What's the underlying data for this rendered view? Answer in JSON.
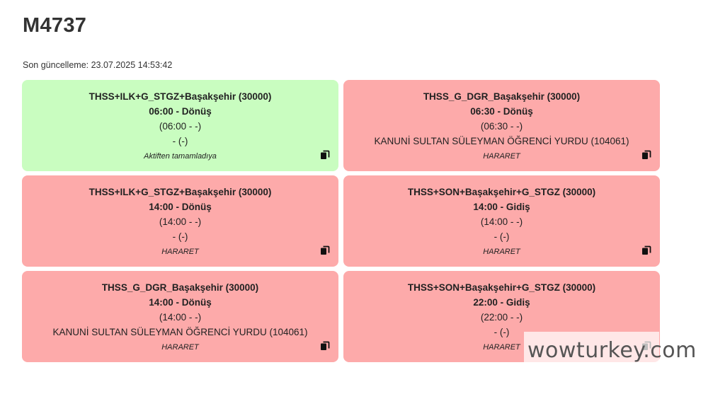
{
  "page": {
    "title": "M4737",
    "last_updated": "Son güncelleme: 23.07.2025 14:53:42"
  },
  "colors": {
    "completed": "#c9fdc0",
    "alert": "#fdaaaa"
  },
  "cards": [
    {
      "route": "THSS+ILK+G_STGZ+Başakşehir (30000)",
      "time": "06:00 - Dönüş",
      "actual": "(06:00 - -)",
      "location": "- (-)",
      "note": "Aktiften tamamladıya",
      "status": "completed",
      "icon": "copy-icon"
    },
    {
      "route": "THSS_G_DGR_Başakşehir (30000)",
      "time": "06:30 - Dönüş",
      "actual": "(06:30 - -)",
      "location": "KANUNİ SULTAN SÜLEYMAN ÖĞRENCİ YURDU (104061)",
      "note": "HARARET",
      "status": "alert",
      "icon": "copy-icon"
    },
    {
      "route": "THSS+ILK+G_STGZ+Başakşehir (30000)",
      "time": "14:00 - Dönüş",
      "actual": "(14:00 - -)",
      "location": "- (-)",
      "note": "HARARET",
      "status": "alert",
      "icon": "copy-icon"
    },
    {
      "route": "THSS+SON+Başakşehir+G_STGZ (30000)",
      "time": "14:00 - Gidiş",
      "actual": "(14:00 - -)",
      "location": "- (-)",
      "note": "HARARET",
      "status": "alert",
      "icon": "copy-icon"
    },
    {
      "route": "THSS_G_DGR_Başakşehir (30000)",
      "time": "14:00 - Dönüş",
      "actual": "(14:00 - -)",
      "location": "KANUNİ SULTAN SÜLEYMAN ÖĞRENCİ YURDU (104061)",
      "note": "HARARET",
      "status": "alert",
      "icon": "copy-icon"
    },
    {
      "route": "THSS+SON+Başakşehir+G_STGZ (30000)",
      "time": "22:00 - Gidiş",
      "actual": "(22:00 - -)",
      "location": "- (-)",
      "note": "HARARET",
      "status": "alert",
      "icon": "copy-icon"
    }
  ],
  "watermark": "wowturkey.com"
}
